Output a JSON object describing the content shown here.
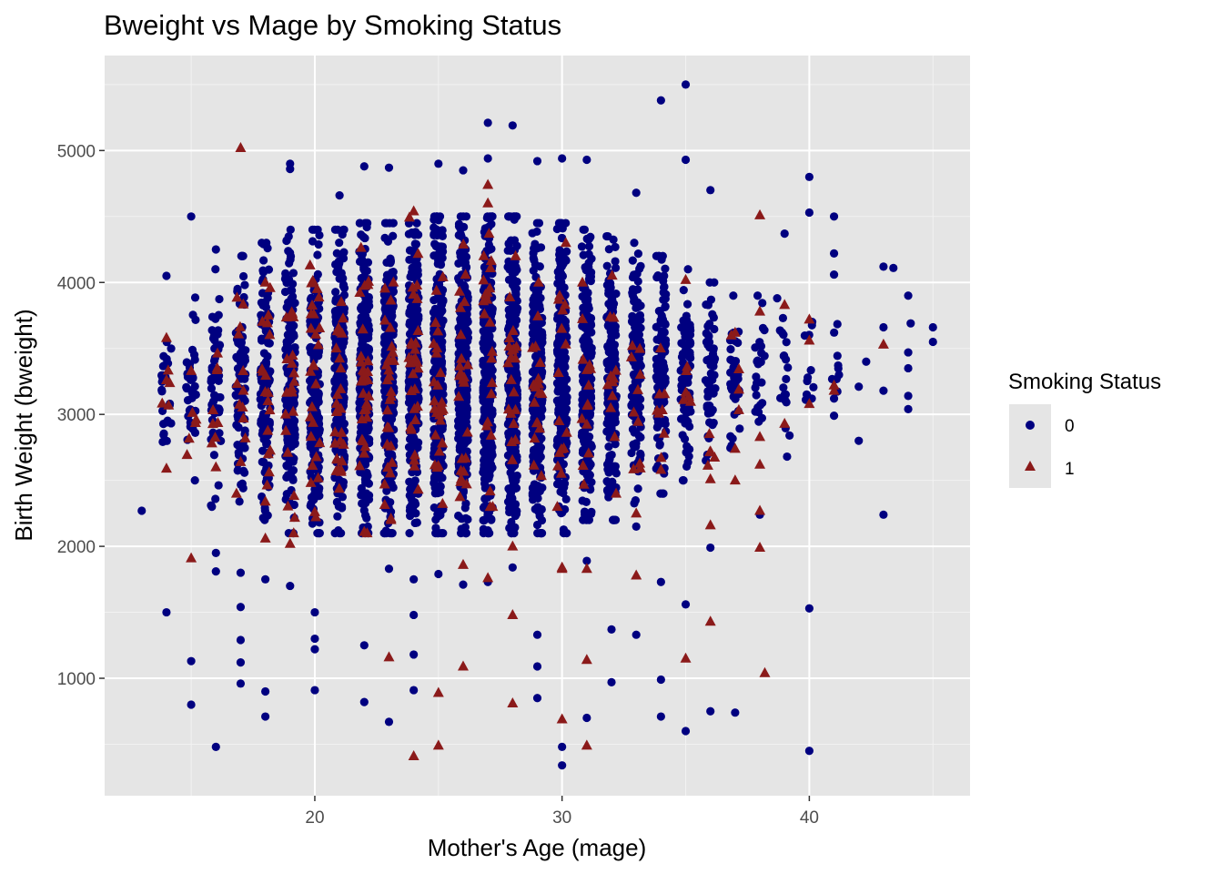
{
  "chart_data": {
    "type": "scatter",
    "title": "Bweight vs Mage by Smoking Status",
    "xlabel": "Mother's Age (mage)",
    "ylabel": "Birth Weight (bweight)",
    "xlim": [
      11.5,
      46.5
    ],
    "ylim": [
      110,
      5720
    ],
    "x_ticks": [
      20,
      30,
      40
    ],
    "y_ticks": [
      1000,
      2000,
      3000,
      4000,
      5000
    ],
    "x_tick_labels": [
      "20",
      "30",
      "40"
    ],
    "y_tick_labels": [
      "1000",
      "2000",
      "3000",
      "4000",
      "5000"
    ],
    "grid": true,
    "background": "#e5e5e5",
    "legend": {
      "title": "Smoking Status",
      "position": "right",
      "entries": [
        {
          "label": "0",
          "shape": "circle",
          "color": "#000080"
        },
        {
          "label": "1",
          "shape": "triangle",
          "color": "#8b1a1a"
        }
      ]
    },
    "series": [
      {
        "name": "0",
        "shape": "circle",
        "color": "#000080",
        "jitter_clouds": [
          {
            "age": 14,
            "n": 25,
            "lo": 2500,
            "hi": 3700
          },
          {
            "age": 15,
            "n": 35,
            "lo": 2500,
            "hi": 3900
          },
          {
            "age": 16,
            "n": 60,
            "lo": 2300,
            "hi": 4100
          },
          {
            "age": 17,
            "n": 80,
            "lo": 2300,
            "hi": 4200
          },
          {
            "age": 18,
            "n": 120,
            "lo": 2200,
            "hi": 4300
          },
          {
            "age": 19,
            "n": 160,
            "lo": 2100,
            "hi": 4400
          },
          {
            "age": 20,
            "n": 200,
            "lo": 2100,
            "hi": 4400
          },
          {
            "age": 21,
            "n": 230,
            "lo": 2100,
            "hi": 4400
          },
          {
            "age": 22,
            "n": 260,
            "lo": 2100,
            "hi": 4450
          },
          {
            "age": 23,
            "n": 270,
            "lo": 2100,
            "hi": 4450
          },
          {
            "age": 24,
            "n": 280,
            "lo": 2100,
            "hi": 4450
          },
          {
            "age": 25,
            "n": 280,
            "lo": 2100,
            "hi": 4500
          },
          {
            "age": 26,
            "n": 290,
            "lo": 2100,
            "hi": 4500
          },
          {
            "age": 27,
            "n": 290,
            "lo": 2100,
            "hi": 4500
          },
          {
            "age": 28,
            "n": 280,
            "lo": 2100,
            "hi": 4500
          },
          {
            "age": 29,
            "n": 270,
            "lo": 2100,
            "hi": 4450
          },
          {
            "age": 30,
            "n": 250,
            "lo": 2100,
            "hi": 4450
          },
          {
            "age": 31,
            "n": 220,
            "lo": 2200,
            "hi": 4400
          },
          {
            "age": 32,
            "n": 180,
            "lo": 2200,
            "hi": 4350
          },
          {
            "age": 33,
            "n": 140,
            "lo": 2300,
            "hi": 4300
          },
          {
            "age": 34,
            "n": 110,
            "lo": 2400,
            "hi": 4200
          },
          {
            "age": 35,
            "n": 80,
            "lo": 2500,
            "hi": 4100
          },
          {
            "age": 36,
            "n": 55,
            "lo": 2600,
            "hi": 4000
          },
          {
            "age": 37,
            "n": 40,
            "lo": 2700,
            "hi": 3900
          },
          {
            "age": 38,
            "n": 25,
            "lo": 2800,
            "hi": 3900
          },
          {
            "age": 39,
            "n": 15,
            "lo": 2800,
            "hi": 3800
          },
          {
            "age": 40,
            "n": 10,
            "lo": 3000,
            "hi": 3900
          },
          {
            "age": 41,
            "n": 8,
            "lo": 3000,
            "hi": 3900
          }
        ],
        "points": [
          [
            13,
            2270
          ],
          [
            14,
            1500
          ],
          [
            14,
            4050
          ],
          [
            15,
            4500
          ],
          [
            15,
            1130
          ],
          [
            15,
            800
          ],
          [
            16,
            1950
          ],
          [
            16,
            1810
          ],
          [
            16,
            480
          ],
          [
            16,
            4250
          ],
          [
            17,
            1540
          ],
          [
            17,
            1290
          ],
          [
            17,
            1120
          ],
          [
            17,
            960
          ],
          [
            17,
            1800
          ],
          [
            18,
            1750
          ],
          [
            18,
            710
          ],
          [
            18,
            900
          ],
          [
            19,
            1700
          ],
          [
            19,
            4860
          ],
          [
            19,
            4900
          ],
          [
            20,
            1500
          ],
          [
            20,
            1300
          ],
          [
            20,
            1220
          ],
          [
            20,
            910
          ],
          [
            21,
            4660
          ],
          [
            22,
            4880
          ],
          [
            22,
            1250
          ],
          [
            22,
            820
          ],
          [
            23,
            4870
          ],
          [
            23,
            1830
          ],
          [
            23,
            670
          ],
          [
            24,
            1480
          ],
          [
            24,
            1750
          ],
          [
            24,
            1180
          ],
          [
            24,
            910
          ],
          [
            25,
            4900
          ],
          [
            25,
            1790
          ],
          [
            26,
            4850
          ],
          [
            26,
            1710
          ],
          [
            27,
            5210
          ],
          [
            27,
            4940
          ],
          [
            27,
            1730
          ],
          [
            28,
            5190
          ],
          [
            28,
            1840
          ],
          [
            29,
            4920
          ],
          [
            29,
            1330
          ],
          [
            29,
            1090
          ],
          [
            29,
            850
          ],
          [
            30,
            4940
          ],
          [
            30,
            480
          ],
          [
            30,
            340
          ],
          [
            31,
            4930
          ],
          [
            31,
            700
          ],
          [
            31,
            1890
          ],
          [
            32,
            1370
          ],
          [
            32,
            970
          ],
          [
            33,
            4680
          ],
          [
            33,
            1330
          ],
          [
            33,
            2150
          ],
          [
            34,
            5380
          ],
          [
            34,
            1730
          ],
          [
            34,
            710
          ],
          [
            34,
            990
          ],
          [
            35,
            5500
          ],
          [
            35,
            4930
          ],
          [
            35,
            1560
          ],
          [
            35,
            600
          ],
          [
            36,
            4700
          ],
          [
            36,
            1990
          ],
          [
            36,
            750
          ],
          [
            37,
            740
          ],
          [
            38,
            2240
          ],
          [
            39,
            4370
          ],
          [
            39,
            3150
          ],
          [
            40,
            4800
          ],
          [
            40,
            4530
          ],
          [
            40,
            1530
          ],
          [
            40,
            450
          ],
          [
            41,
            4500
          ],
          [
            41,
            4220
          ],
          [
            41,
            4060
          ],
          [
            41,
            2990
          ],
          [
            41,
            3120
          ],
          [
            42,
            3210
          ],
          [
            42,
            2800
          ],
          [
            43,
            4120
          ],
          [
            43,
            3660
          ],
          [
            43,
            2240
          ],
          [
            43,
            3180
          ],
          [
            44,
            3900
          ],
          [
            44,
            3470
          ],
          [
            44,
            3350
          ],
          [
            44,
            3140
          ],
          [
            44,
            3040
          ],
          [
            45,
            3660
          ],
          [
            45,
            3550
          ],
          [
            42.3,
            3400
          ],
          [
            43.4,
            4110
          ],
          [
            44.1,
            3690
          ],
          [
            41.2,
            3300
          ],
          [
            39.1,
            2680
          ],
          [
            39.2,
            2840
          ],
          [
            40.1,
            3120
          ],
          [
            38.7,
            3880
          ],
          [
            38.9,
            3620
          ]
        ]
      },
      {
        "name": "1",
        "shape": "triangle",
        "color": "#8b1a1a",
        "jitter_clouds": [
          {
            "age": 14,
            "n": 4,
            "lo": 2600,
            "hi": 3600
          },
          {
            "age": 15,
            "n": 5,
            "lo": 2600,
            "hi": 3400
          },
          {
            "age": 16,
            "n": 8,
            "lo": 2500,
            "hi": 3600
          },
          {
            "age": 17,
            "n": 12,
            "lo": 2400,
            "hi": 4100
          },
          {
            "age": 18,
            "n": 18,
            "lo": 2300,
            "hi": 4000
          },
          {
            "age": 19,
            "n": 22,
            "lo": 2100,
            "hi": 4000
          },
          {
            "age": 20,
            "n": 26,
            "lo": 2200,
            "hi": 4300
          },
          {
            "age": 21,
            "n": 28,
            "lo": 2100,
            "hi": 4100
          },
          {
            "age": 22,
            "n": 30,
            "lo": 2100,
            "hi": 4400
          },
          {
            "age": 23,
            "n": 30,
            "lo": 2200,
            "hi": 4300
          },
          {
            "age": 24,
            "n": 30,
            "lo": 2200,
            "hi": 4500
          },
          {
            "age": 25,
            "n": 28,
            "lo": 2300,
            "hi": 4100
          },
          {
            "age": 26,
            "n": 24,
            "lo": 2200,
            "hi": 4300
          },
          {
            "age": 27,
            "n": 22,
            "lo": 2300,
            "hi": 4500
          },
          {
            "age": 28,
            "n": 20,
            "lo": 2300,
            "hi": 4200
          },
          {
            "age": 29,
            "n": 18,
            "lo": 2300,
            "hi": 4200
          },
          {
            "age": 30,
            "n": 16,
            "lo": 2300,
            "hi": 4300
          },
          {
            "age": 31,
            "n": 14,
            "lo": 2400,
            "hi": 4000
          },
          {
            "age": 32,
            "n": 12,
            "lo": 2400,
            "hi": 4200
          },
          {
            "age": 33,
            "n": 10,
            "lo": 2500,
            "hi": 4000
          },
          {
            "age": 34,
            "n": 8,
            "lo": 2500,
            "hi": 3800
          },
          {
            "age": 35,
            "n": 6,
            "lo": 2500,
            "hi": 3600
          },
          {
            "age": 36,
            "n": 4,
            "lo": 2500,
            "hi": 3400
          },
          {
            "age": 37,
            "n": 4,
            "lo": 2800,
            "hi": 3900
          }
        ],
        "points": [
          [
            17,
            5020
          ],
          [
            14,
            3580
          ],
          [
            14,
            3260
          ],
          [
            14,
            2590
          ],
          [
            15,
            1910
          ],
          [
            15,
            3330
          ],
          [
            16,
            2600
          ],
          [
            17,
            2640
          ],
          [
            18,
            2060
          ],
          [
            18,
            2340
          ],
          [
            19,
            2020
          ],
          [
            20,
            2260
          ],
          [
            22,
            2110
          ],
          [
            23,
            1160
          ],
          [
            24,
            410
          ],
          [
            24,
            4540
          ],
          [
            25,
            490
          ],
          [
            25,
            890
          ],
          [
            26,
            1860
          ],
          [
            26,
            1090
          ],
          [
            27,
            1760
          ],
          [
            27,
            4740
          ],
          [
            27,
            4600
          ],
          [
            28,
            2000
          ],
          [
            28,
            1480
          ],
          [
            28,
            810
          ],
          [
            30,
            690
          ],
          [
            30,
            1830
          ],
          [
            30,
            1840
          ],
          [
            31,
            490
          ],
          [
            31,
            1140
          ],
          [
            31,
            1830
          ],
          [
            33,
            1780
          ],
          [
            33,
            2250
          ],
          [
            34,
            2580
          ],
          [
            35,
            1150
          ],
          [
            35,
            4020
          ],
          [
            36,
            2510
          ],
          [
            36,
            2160
          ],
          [
            36,
            1430
          ],
          [
            36,
            2720
          ],
          [
            37,
            2740
          ],
          [
            37,
            2500
          ],
          [
            37,
            3620
          ],
          [
            38,
            4510
          ],
          [
            38,
            3780
          ],
          [
            38,
            2830
          ],
          [
            38,
            2620
          ],
          [
            38,
            2270
          ],
          [
            38,
            1990
          ],
          [
            38.2,
            1040
          ],
          [
            39,
            2930
          ],
          [
            39,
            3830
          ],
          [
            40,
            3080
          ],
          [
            40,
            3560
          ],
          [
            40,
            3720
          ],
          [
            41,
            3220
          ],
          [
            41,
            3180
          ],
          [
            43,
            3530
          ]
        ]
      }
    ]
  }
}
